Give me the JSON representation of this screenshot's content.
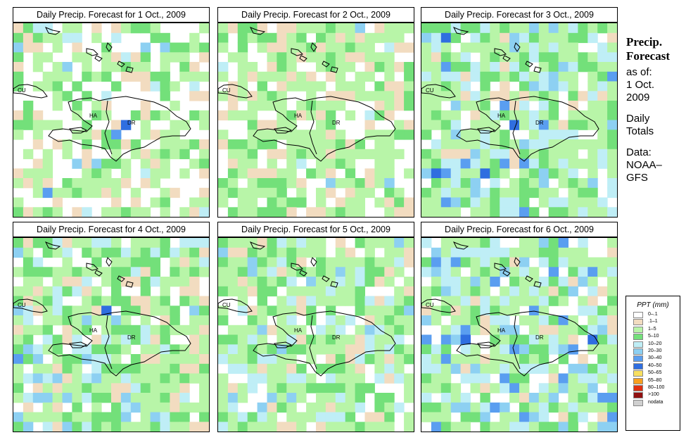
{
  "panels": [
    {
      "title": "Daily Precip. Forecast for  1 Oct., 2009"
    },
    {
      "title": "Daily Precip. Forecast for  2 Oct., 2009"
    },
    {
      "title": "Daily Precip. Forecast for  3 Oct., 2009"
    },
    {
      "title": "Daily Precip. Forecast for  4 Oct., 2009"
    },
    {
      "title": "Daily Precip. Forecast for  5 Oct., 2009"
    },
    {
      "title": "Daily Precip. Forecast for  6 Oct., 2009"
    }
  ],
  "map_labels": {
    "cuba": "CU",
    "haiti": "HA",
    "dominican_republic": "DR"
  },
  "side_text": {
    "title_line1": "Precip.",
    "title_line2": "Forecast",
    "asof": "as of:",
    "date_line1": "1 Oct.",
    "date_line2": "2009",
    "totals_line1": "Daily",
    "totals_line2": "Totals",
    "data_line1": "Data:",
    "data_line2": "NOAA–",
    "data_line3": "GFS"
  },
  "legend": {
    "title": "PPT (mm)",
    "items": [
      {
        "label": "0–.1",
        "color": "#ffffff"
      },
      {
        "label": ".1–1",
        "color": "#f2dcc0"
      },
      {
        "label": "1–5",
        "color": "#b8f5a8"
      },
      {
        "label": "5–10",
        "color": "#73e07a"
      },
      {
        "label": "10–20",
        "color": "#bfeef6"
      },
      {
        "label": "20–30",
        "color": "#8dd0f2"
      },
      {
        "label": "30–40",
        "color": "#5a9ef0"
      },
      {
        "label": "40–50",
        "color": "#2f6ee0"
      },
      {
        "label": "50–65",
        "color": "#f8e060"
      },
      {
        "label": "65–80",
        "color": "#f8a020"
      },
      {
        "label": "80–100",
        "color": "#e03010"
      },
      {
        "label": ">100",
        "color": "#901010"
      },
      {
        "label": "nodata",
        "color": "#d0d0d0"
      }
    ]
  }
}
